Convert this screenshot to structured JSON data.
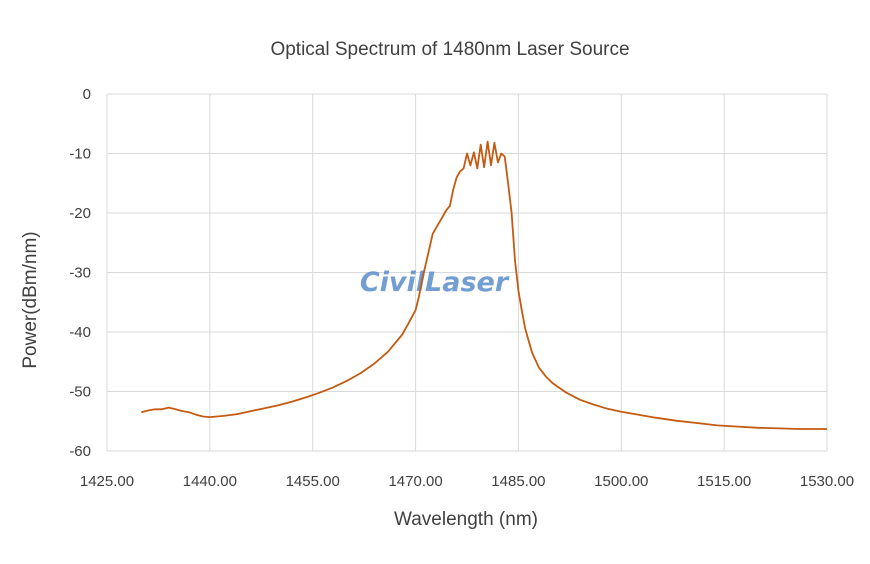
{
  "chart_data": {
    "type": "line",
    "title": "Optical Spectrum of 1480nm Laser Source",
    "xlabel": "Wavelength (nm)",
    "ylabel": "Power(dBm/nm)",
    "xlim": [
      1425,
      1530
    ],
    "ylim": [
      -60,
      0
    ],
    "xticks": [
      "1425.00",
      "1440.00",
      "1455.00",
      "1470.00",
      "1485.00",
      "1500.00",
      "1515.00",
      "1530.00"
    ],
    "yticks": [
      "0",
      "-10",
      "-20",
      "-30",
      "-40",
      "-50",
      "-60"
    ],
    "grid": true,
    "legend": "none",
    "series": [
      {
        "color": "#c55a11",
        "x": [
          1430,
          1431,
          1432,
          1433,
          1434,
          1435,
          1436,
          1437,
          1438,
          1439,
          1440,
          1441,
          1442,
          1444,
          1446,
          1448,
          1450,
          1452,
          1454,
          1456,
          1458,
          1460,
          1462,
          1464,
          1466,
          1468,
          1469,
          1470,
          1470.5,
          1471,
          1471.5,
          1472,
          1472.5,
          1473,
          1473.5,
          1474,
          1474.5,
          1475,
          1475.5,
          1476,
          1476.5,
          1477,
          1477.5,
          1478,
          1478.5,
          1479,
          1479.5,
          1480,
          1480.5,
          1481,
          1481.5,
          1482,
          1482.5,
          1483,
          1483.5,
          1484,
          1484.5,
          1485,
          1485.5,
          1486,
          1487,
          1488,
          1489,
          1490,
          1492,
          1494,
          1496,
          1498,
          1500,
          1502,
          1505,
          1508,
          1511,
          1514,
          1517,
          1520,
          1523,
          1526,
          1530
        ],
        "y": [
          -53.5,
          -53.2,
          -53.0,
          -53.0,
          -52.7,
          -53.0,
          -53.3,
          -53.5,
          -53.9,
          -54.2,
          -54.3,
          -54.2,
          -54.1,
          -53.8,
          -53.3,
          -52.8,
          -52.3,
          -51.7,
          -51.0,
          -50.2,
          -49.3,
          -48.2,
          -46.9,
          -45.3,
          -43.3,
          -40.5,
          -38.5,
          -36.3,
          -34.0,
          -31.0,
          -28.5,
          -26.0,
          -23.5,
          -22.5,
          -21.5,
          -20.5,
          -19.5,
          -18.8,
          -16.0,
          -14.0,
          -13.0,
          -12.5,
          -10.0,
          -12.0,
          -9.8,
          -12.5,
          -8.5,
          -12.3,
          -8.0,
          -12.0,
          -8.2,
          -11.5,
          -10.0,
          -10.5,
          -15.0,
          -20.0,
          -28.0,
          -33.0,
          -36.5,
          -39.5,
          -43.5,
          -46.0,
          -47.5,
          -48.6,
          -50.2,
          -51.4,
          -52.2,
          -52.9,
          -53.4,
          -53.8,
          -54.4,
          -54.9,
          -55.3,
          -55.7,
          -55.9,
          -56.1,
          -56.2,
          -56.3,
          -56.3
        ]
      }
    ]
  },
  "watermark": {
    "text": "CivilLaser",
    "color": "#5b8ec9"
  }
}
